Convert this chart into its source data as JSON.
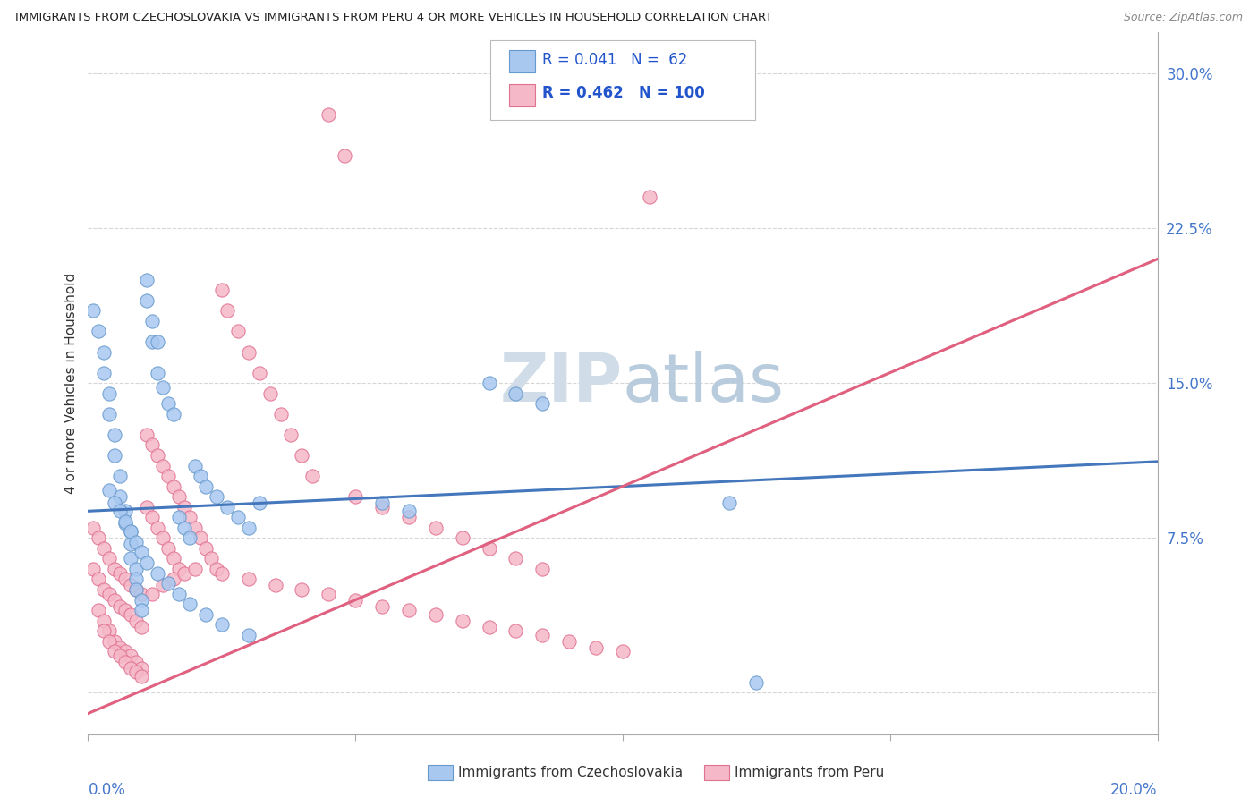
{
  "title": "IMMIGRANTS FROM CZECHOSLOVAKIA VS IMMIGRANTS FROM PERU 4 OR MORE VEHICLES IN HOUSEHOLD CORRELATION CHART",
  "source": "Source: ZipAtlas.com",
  "ylabel": "4 or more Vehicles in Household",
  "ylim": [
    -0.02,
    0.32
  ],
  "xlim": [
    0.0,
    0.2
  ],
  "yticks": [
    0.0,
    0.075,
    0.15,
    0.225,
    0.3
  ],
  "ytick_labels": [
    "",
    "7.5%",
    "15.0%",
    "22.5%",
    "30.0%"
  ],
  "legend_R1": "0.041",
  "legend_N1": "62",
  "legend_R2": "0.462",
  "legend_N2": "100",
  "color_czech": "#a8c8f0",
  "color_czech_edge": "#6699cc",
  "color_peru": "#f5b8c8",
  "color_peru_edge": "#e07090",
  "color_czech_line": "#4477bb",
  "color_peru_line": "#e06080",
  "background": "#ffffff",
  "watermark_color": "#d0dde8",
  "czech_x": [
    0.001,
    0.002,
    0.003,
    0.003,
    0.004,
    0.004,
    0.005,
    0.005,
    0.006,
    0.006,
    0.007,
    0.007,
    0.008,
    0.008,
    0.008,
    0.009,
    0.009,
    0.009,
    0.01,
    0.01,
    0.011,
    0.011,
    0.012,
    0.012,
    0.013,
    0.013,
    0.014,
    0.015,
    0.016,
    0.017,
    0.018,
    0.019,
    0.02,
    0.021,
    0.022,
    0.024,
    0.026,
    0.028,
    0.03,
    0.032,
    0.004,
    0.005,
    0.006,
    0.007,
    0.008,
    0.009,
    0.01,
    0.011,
    0.013,
    0.015,
    0.017,
    0.019,
    0.022,
    0.025,
    0.03,
    0.075,
    0.08,
    0.085,
    0.055,
    0.06,
    0.12,
    0.125
  ],
  "czech_y": [
    0.185,
    0.175,
    0.165,
    0.155,
    0.145,
    0.135,
    0.125,
    0.115,
    0.105,
    0.095,
    0.088,
    0.082,
    0.078,
    0.072,
    0.065,
    0.06,
    0.055,
    0.05,
    0.045,
    0.04,
    0.2,
    0.19,
    0.18,
    0.17,
    0.17,
    0.155,
    0.148,
    0.14,
    0.135,
    0.085,
    0.08,
    0.075,
    0.11,
    0.105,
    0.1,
    0.095,
    0.09,
    0.085,
    0.08,
    0.092,
    0.098,
    0.092,
    0.088,
    0.083,
    0.078,
    0.073,
    0.068,
    0.063,
    0.058,
    0.053,
    0.048,
    0.043,
    0.038,
    0.033,
    0.028,
    0.15,
    0.145,
    0.14,
    0.092,
    0.088,
    0.092,
    0.005
  ],
  "peru_x": [
    0.001,
    0.001,
    0.002,
    0.002,
    0.002,
    0.003,
    0.003,
    0.003,
    0.004,
    0.004,
    0.004,
    0.005,
    0.005,
    0.005,
    0.006,
    0.006,
    0.006,
    0.007,
    0.007,
    0.007,
    0.008,
    0.008,
    0.008,
    0.009,
    0.009,
    0.009,
    0.01,
    0.01,
    0.01,
    0.011,
    0.011,
    0.012,
    0.012,
    0.013,
    0.013,
    0.014,
    0.014,
    0.015,
    0.015,
    0.016,
    0.016,
    0.017,
    0.017,
    0.018,
    0.019,
    0.02,
    0.021,
    0.022,
    0.023,
    0.024,
    0.025,
    0.026,
    0.028,
    0.03,
    0.032,
    0.034,
    0.036,
    0.038,
    0.04,
    0.042,
    0.045,
    0.048,
    0.05,
    0.055,
    0.06,
    0.065,
    0.07,
    0.075,
    0.08,
    0.085,
    0.003,
    0.004,
    0.005,
    0.006,
    0.007,
    0.008,
    0.009,
    0.01,
    0.012,
    0.014,
    0.016,
    0.018,
    0.02,
    0.025,
    0.03,
    0.035,
    0.04,
    0.045,
    0.05,
    0.055,
    0.06,
    0.065,
    0.07,
    0.075,
    0.08,
    0.085,
    0.09,
    0.095,
    0.1,
    0.105
  ],
  "peru_y": [
    0.08,
    0.06,
    0.075,
    0.055,
    0.04,
    0.07,
    0.05,
    0.035,
    0.065,
    0.048,
    0.03,
    0.06,
    0.045,
    0.025,
    0.058,
    0.042,
    0.022,
    0.055,
    0.04,
    0.02,
    0.052,
    0.038,
    0.018,
    0.05,
    0.035,
    0.015,
    0.048,
    0.032,
    0.012,
    0.125,
    0.09,
    0.12,
    0.085,
    0.115,
    0.08,
    0.11,
    0.075,
    0.105,
    0.07,
    0.1,
    0.065,
    0.095,
    0.06,
    0.09,
    0.085,
    0.08,
    0.075,
    0.07,
    0.065,
    0.06,
    0.195,
    0.185,
    0.175,
    0.165,
    0.155,
    0.145,
    0.135,
    0.125,
    0.115,
    0.105,
    0.28,
    0.26,
    0.095,
    0.09,
    0.085,
    0.08,
    0.075,
    0.07,
    0.065,
    0.06,
    0.03,
    0.025,
    0.02,
    0.018,
    0.015,
    0.012,
    0.01,
    0.008,
    0.048,
    0.052,
    0.055,
    0.058,
    0.06,
    0.058,
    0.055,
    0.052,
    0.05,
    0.048,
    0.045,
    0.042,
    0.04,
    0.038,
    0.035,
    0.032,
    0.03,
    0.028,
    0.025,
    0.022,
    0.02,
    0.24
  ],
  "czech_line_x": [
    0.0,
    0.2
  ],
  "czech_line_y": [
    0.088,
    0.112
  ],
  "peru_line_x": [
    0.0,
    0.2
  ],
  "peru_line_y": [
    -0.01,
    0.21
  ]
}
